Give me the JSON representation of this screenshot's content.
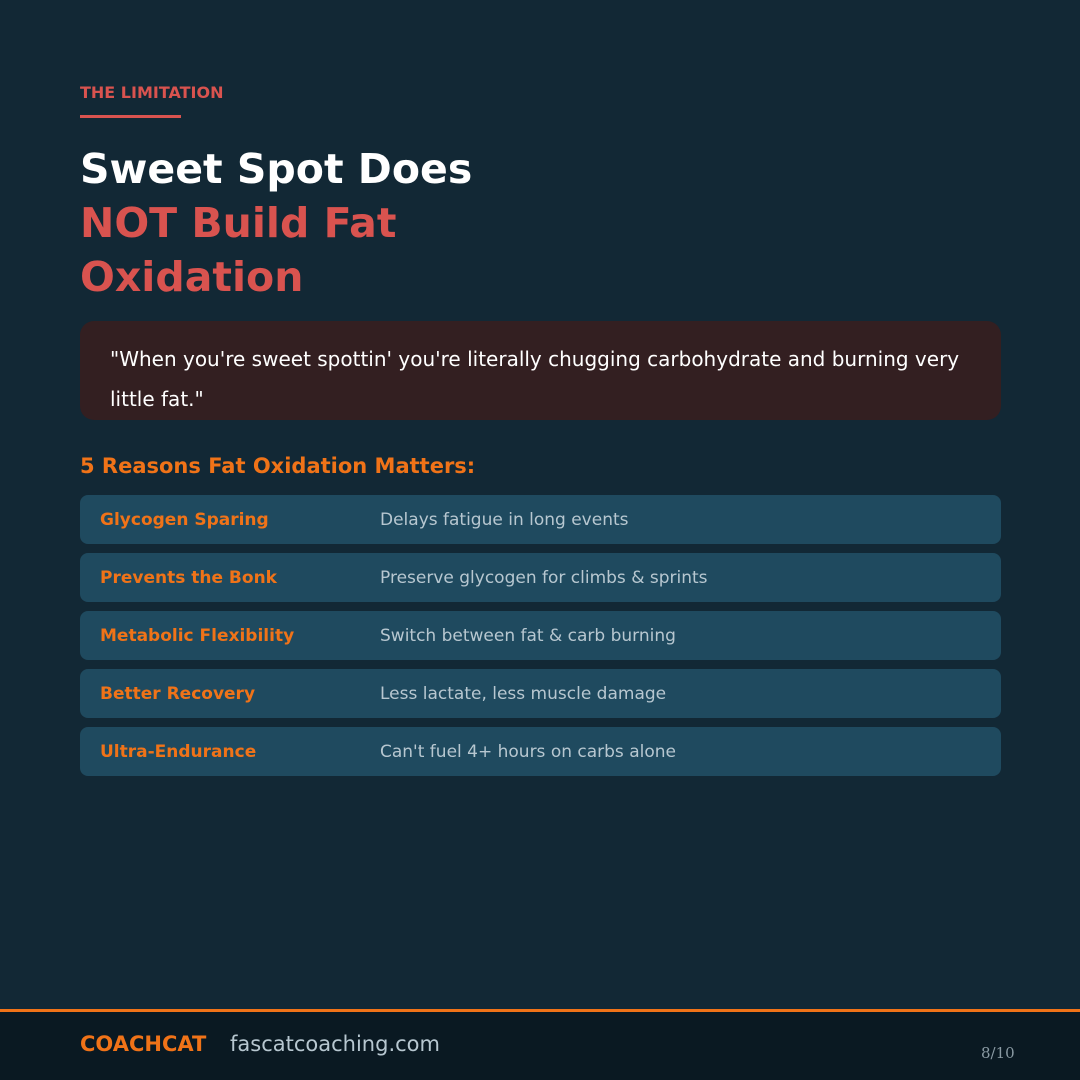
{
  "eyebrow": "THE LIMITATION",
  "title": {
    "line1": "Sweet Spot Does",
    "highlight": "NOT Build Fat Oxidation"
  },
  "quote": "\"When you're sweet spottin' you're literally chugging carbohydrate and burning very little fat.\"",
  "subheading": "5 Reasons Fat Oxidation Matters:",
  "reasons": [
    {
      "label": "Glycogen Sparing",
      "desc": "Delays fatigue in long events"
    },
    {
      "label": "Prevents the Bonk",
      "desc": "Preserve glycogen for climbs & sprints"
    },
    {
      "label": "Metabolic Flexibility",
      "desc": "Switch between fat & carb burning"
    },
    {
      "label": "Better Recovery",
      "desc": "Less lactate, less muscle damage"
    },
    {
      "label": "Ultra-Endurance",
      "desc": "Can't fuel 4+ hours on carbs alone"
    }
  ],
  "footer": {
    "brand": "COACHCAT",
    "site": "fascatcoaching.com",
    "page": "8/10"
  },
  "colors": {
    "background": "#122835",
    "accent_red": "#d9534f",
    "accent_orange": "#f07318",
    "row": "#1f4a5f",
    "quote_bg": "#331f21"
  }
}
